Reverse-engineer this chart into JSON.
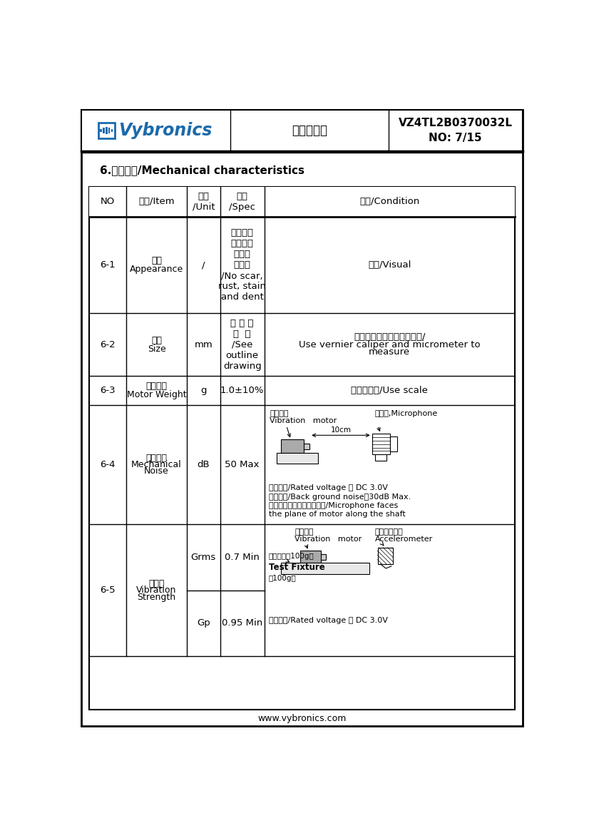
{
  "title_product": "VZ4TL2B0370032L",
  "title_no": "NO: 7/15",
  "title_center": "产品规格书",
  "section_title": "6.机械特性/Mechanical characteristics",
  "website": "www.vybronics.com",
  "bg_color": "#ffffff",
  "border_color": "#000000",
  "rows": [
    {
      "no": "6-1",
      "item_zh": "外观",
      "item_en": "Appearance",
      "unit": "/",
      "spec": "无划痕、\n锈蚀、污\n边等不\n良现象\n/No scar,\nrust, stain\nand dent",
      "cond_zh": "目测",
      "cond_en": "Visual",
      "type": "text"
    },
    {
      "no": "6-2",
      "item_zh": "尺寸",
      "item_en": "Size",
      "unit": "mm",
      "spec": "详 见 外\n形  图\n/See\noutline\ndrawing",
      "cond_line1": "使用游标卡尺和千分尺测量/",
      "cond_line2": "Use vernier caliper and micrometer to",
      "cond_line3": "measure",
      "type": "text2"
    },
    {
      "no": "6-3",
      "item_zh": "电机重量",
      "item_en": "Motor Weight",
      "unit": "g",
      "spec": "1.0±10%",
      "cond_zh": "用天平测量",
      "cond_en": "Use scale",
      "type": "text"
    },
    {
      "no": "6-4",
      "item_zh": "机械噪音",
      "item_en1": "Mechanical",
      "item_en2": "Noise",
      "unit": "dB",
      "spec": "50 Max",
      "type": "noise_diagram"
    },
    {
      "no": "6-5",
      "item_zh": "振动量",
      "item_en1": "Vibration",
      "item_en2": "Strength",
      "unit1": "Grms",
      "spec1": "0.7 Min",
      "unit2": "Gp",
      "spec2": "0.95 Min",
      "type": "vibration_diagram"
    }
  ]
}
